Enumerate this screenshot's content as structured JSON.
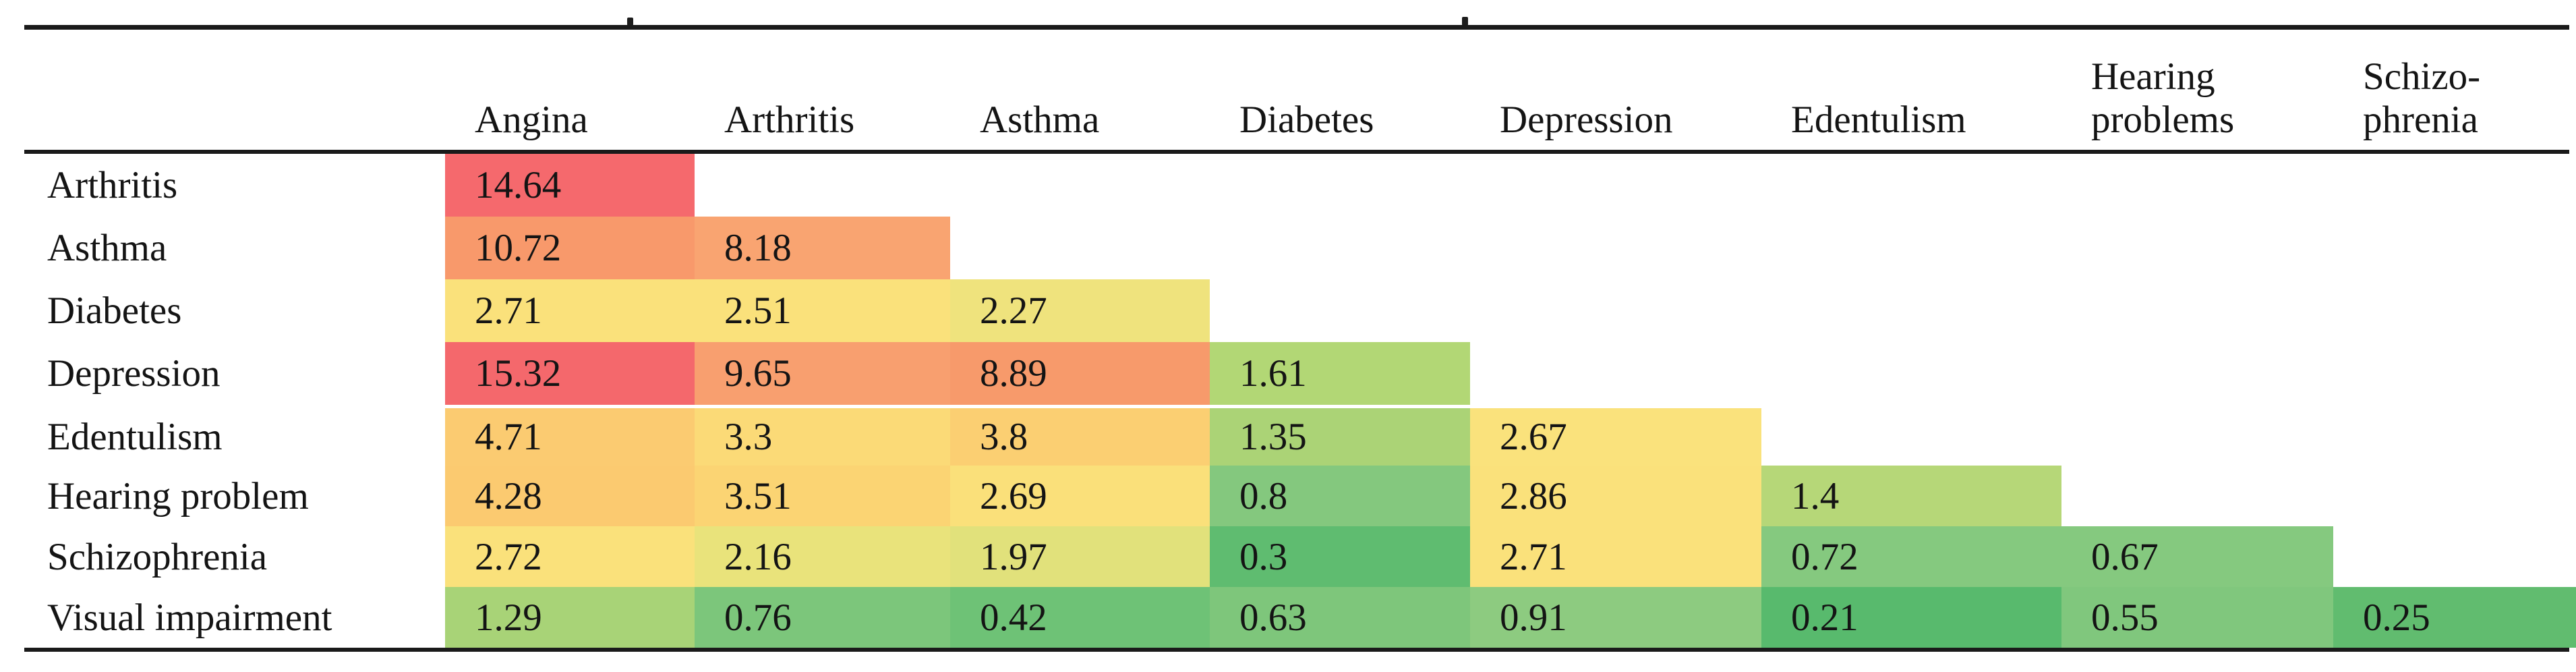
{
  "artifacts": [
    "cropped-descender-left",
    "cropped-descender-right"
  ],
  "chart_data": {
    "type": "heatmap",
    "title": "",
    "layout": "lower-triangular comorbidity matrix table",
    "grid": false,
    "legend": "none",
    "columns": [
      {
        "label": "Angina",
        "lines": [
          "Angina"
        ]
      },
      {
        "label": "Arthritis",
        "lines": [
          "Arthritis"
        ]
      },
      {
        "label": "Asthma",
        "lines": [
          "Asthma"
        ]
      },
      {
        "label": "Diabetes",
        "lines": [
          "Diabetes"
        ]
      },
      {
        "label": "Depression",
        "lines": [
          "Depression"
        ]
      },
      {
        "label": "Edentulism",
        "lines": [
          "Edentulism"
        ]
      },
      {
        "label": "Hearing problems",
        "lines": [
          "Hearing",
          "problems"
        ]
      },
      {
        "label": "Schizophrenia",
        "lines": [
          "Schizo-",
          "phrenia"
        ]
      }
    ],
    "rows": [
      {
        "label": "Arthritis",
        "values": [
          14.64
        ],
        "colors": [
          "#F5696D"
        ]
      },
      {
        "label": "Asthma",
        "values": [
          10.72,
          8.18
        ],
        "colors": [
          "#F8996B",
          "#F9A471"
        ]
      },
      {
        "label": "Diabetes",
        "values": [
          2.71,
          2.51,
          2.27
        ],
        "colors": [
          "#FAE17B",
          "#FAE17B",
          "#EFE37D"
        ]
      },
      {
        "label": "Depression",
        "values": [
          15.32,
          9.65,
          8.89,
          1.61
        ],
        "colors": [
          "#F4686C",
          "#F89F6F",
          "#F79A6B",
          "#B2D775"
        ]
      },
      {
        "label": "Edentulism",
        "values": [
          4.71,
          3.3,
          3.8,
          1.35,
          2.67
        ],
        "colors": [
          "#FBCB71",
          "#FBDA77",
          "#FBCF72",
          "#ABD376",
          "#FAE27C"
        ]
      },
      {
        "label": "Hearing problem",
        "values": [
          4.28,
          3.51,
          2.69,
          0.8,
          2.86,
          1.4
        ],
        "colors": [
          "#FBCA70",
          "#FBD473",
          "#FAE07A",
          "#84C87E",
          "#FAE17B",
          "#B6D778"
        ]
      },
      {
        "label": "Schizophrenia",
        "values": [
          2.72,
          2.16,
          1.97,
          0.3,
          2.71,
          0.72,
          0.67
        ],
        "colors": [
          "#FAE17B",
          "#E9E37B",
          "#E1E17B",
          "#5FBC70",
          "#FAE17B",
          "#85C97F",
          "#85C97F"
        ]
      },
      {
        "label": "Visual impairment",
        "values": [
          1.29,
          0.76,
          0.42,
          0.63,
          0.91,
          0.21,
          0.55,
          0.25
        ],
        "colors": [
          "#A8D377",
          "#7CC67B",
          "#6EC276",
          "#7EC67B",
          "#8DCB80",
          "#58BA6D",
          "#80C77D",
          "#61BC6F"
        ]
      }
    ],
    "colorscale": {
      "low_color": "#63BE7B",
      "mid_color": "#FFEB84",
      "high_color": "#F8696B",
      "low_value": 0.21,
      "high_value": 15.32
    }
  }
}
